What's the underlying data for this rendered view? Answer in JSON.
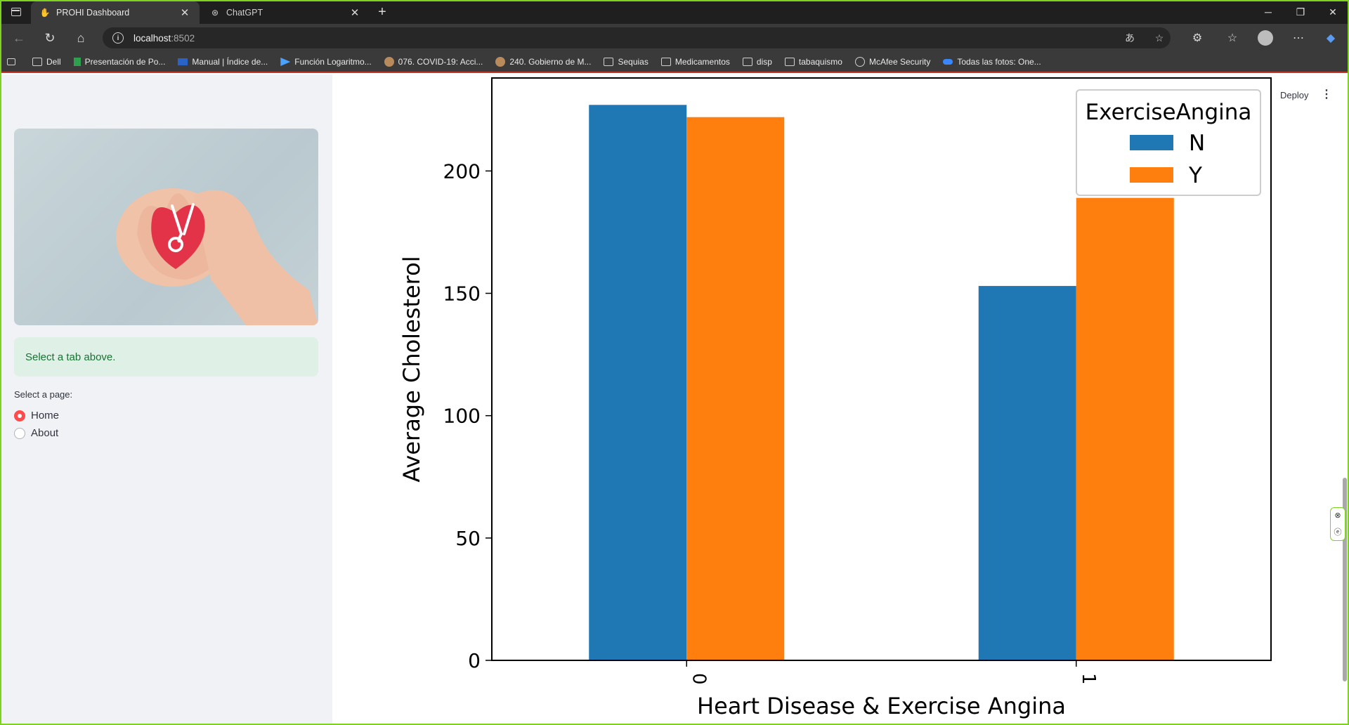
{
  "browser": {
    "tabs": [
      {
        "title": "PROHI Dashboard",
        "active": true,
        "favicon": "hand-icon"
      },
      {
        "title": "ChatGPT",
        "active": false,
        "favicon": "chatgpt-icon"
      }
    ],
    "address": {
      "host": "localhost",
      "port": ":8502"
    },
    "bookmarks": [
      {
        "label": "Dell",
        "icon": "folder-icon"
      },
      {
        "label": "Presentación de Po...",
        "icon": "sheet-icon"
      },
      {
        "label": "Manual | Índice de...",
        "icon": "cdc-icon"
      },
      {
        "label": "Función Logaritmo...",
        "icon": "play-icon"
      },
      {
        "label": "076. COVID-19: Acci...",
        "icon": "site-icon"
      },
      {
        "label": "240. Gobierno de M...",
        "icon": "site-icon"
      },
      {
        "label": "Sequias",
        "icon": "folder-icon"
      },
      {
        "label": "Medicamentos",
        "icon": "folder-icon"
      },
      {
        "label": "disp",
        "icon": "folder-icon"
      },
      {
        "label": "tabaquismo",
        "icon": "folder-icon"
      },
      {
        "label": "McAfee Security",
        "icon": "globe-icon"
      },
      {
        "label": "Todas las fotos: One...",
        "icon": "cloud-icon"
      }
    ]
  },
  "sidebar": {
    "alert": "Select a tab above.",
    "select_label": "Select a page:",
    "pages": [
      {
        "label": "Home",
        "checked": true
      },
      {
        "label": "About",
        "checked": false
      }
    ]
  },
  "header": {
    "deploy": "Deploy"
  },
  "colors": {
    "series_n": "#1f77b4",
    "series_y": "#ff7f0e",
    "alert_bg": "#dff0e6",
    "alert_text": "#177233",
    "radio_accent": "#ff4b4b"
  },
  "chart_data": {
    "type": "bar",
    "categories": [
      "0",
      "1"
    ],
    "series": [
      {
        "name": "N",
        "values": [
          227,
          153
        ]
      },
      {
        "name": "Y",
        "values": [
          222,
          189
        ]
      }
    ],
    "xlabel": "Heart Disease & Exercise Angina",
    "ylabel": "Average Cholesterol",
    "yticks": [
      0,
      50,
      100,
      150,
      200
    ],
    "ylim": [
      0,
      238
    ],
    "legend_title": "ExerciseAngina",
    "legend_position": "top-right",
    "x_tick_rotation": 90
  }
}
